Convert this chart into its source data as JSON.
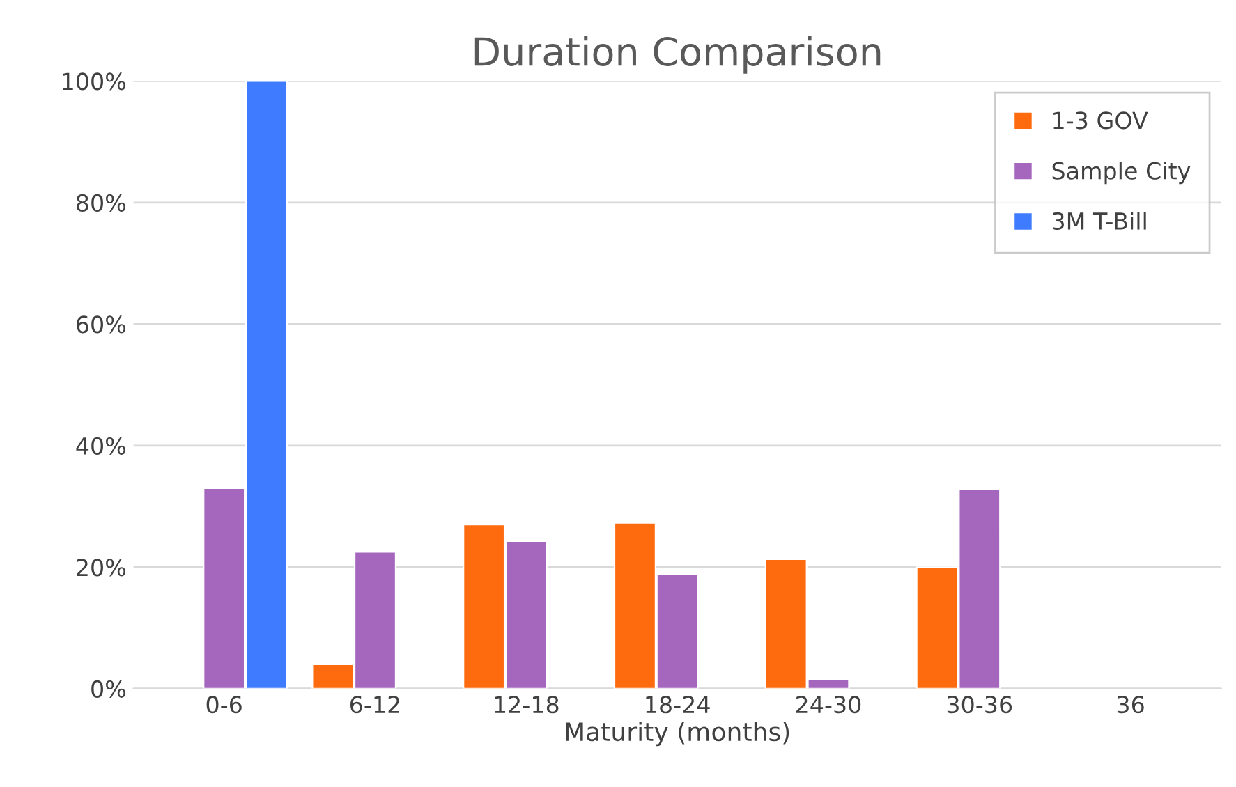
{
  "chart_data": {
    "type": "bar",
    "title": "Duration Comparison",
    "xlabel": "Maturity (months)",
    "categories": [
      "0-6",
      "6-12",
      "12-18",
      "18-24",
      "24-30",
      "30-36",
      "36"
    ],
    "series": [
      {
        "name": "1-3 GOV",
        "color": "#fe6a0e",
        "values": [
          null,
          4,
          27,
          27.3,
          21.3,
          20,
          null
        ]
      },
      {
        "name": "Sample City",
        "color": "#a566be",
        "values": [
          33,
          22.5,
          24.3,
          18.8,
          1.6,
          32.8,
          null
        ]
      },
      {
        "name": "3M T-Bill",
        "color": "#3f7bff",
        "values": [
          100,
          null,
          null,
          null,
          null,
          null,
          null
        ]
      }
    ],
    "ylim": [
      0,
      100
    ],
    "yticks": [
      {
        "value": 0,
        "label": "0%"
      },
      {
        "value": 20,
        "label": "20%"
      },
      {
        "value": 40,
        "label": "40%"
      },
      {
        "value": 60,
        "label": "60%"
      },
      {
        "value": 80,
        "label": "80%"
      },
      {
        "value": 100,
        "label": "100%"
      }
    ],
    "grid": "y",
    "legend": "top right"
  }
}
